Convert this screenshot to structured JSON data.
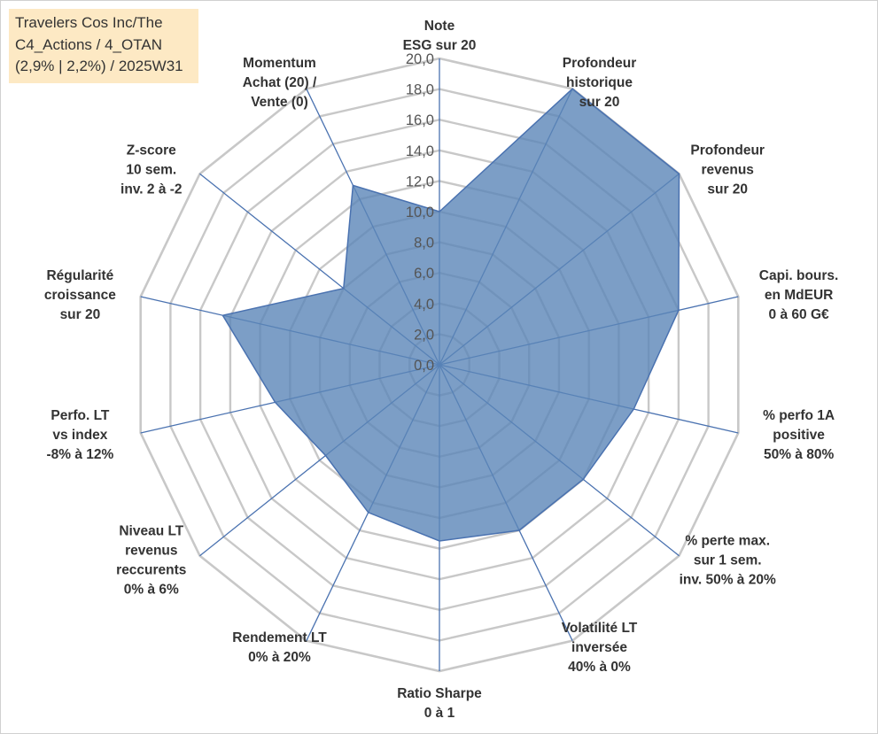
{
  "title_lines": [
    "Travelers Cos Inc/The",
    "C4_Actions / 4_OTAN",
    "(2,9% | 2,2%) / 2025W31"
  ],
  "colors": {
    "fill": "#5b86b8",
    "stroke": "#4a72b0",
    "grid": "#c8c8c8",
    "spoke": "#4a72b0"
  },
  "chart_data": {
    "type": "radar",
    "range": [
      0,
      20
    ],
    "tick_step": 2,
    "tick_labels": [
      "0,0",
      "2,0",
      "4,0",
      "6,0",
      "8,0",
      "10,0",
      "12,0",
      "14,0",
      "16,0",
      "18,0",
      "20,0"
    ],
    "axes": [
      [
        "Note",
        "ESG sur 20"
      ],
      [
        "Profondeur",
        "historique",
        "sur 20"
      ],
      [
        "Profondeur",
        "revenus",
        "sur 20"
      ],
      [
        "Capi. bours.",
        "en MdEUR",
        "0 à 60 G€"
      ],
      [
        "% perfo 1A",
        "positive",
        "50% à 80%"
      ],
      [
        "% perte max.",
        "sur 1 sem.",
        "inv. 50% à 20%"
      ],
      [
        "Volatilité LT",
        "inversée",
        "40% à 0%"
      ],
      [
        "Ratio Sharpe",
        "0 à 1"
      ],
      [
        "Rendement LT",
        "0% à 20%"
      ],
      [
        "Niveau LT",
        "revenus",
        "reccurents",
        "0% à 6%"
      ],
      [
        "Perfo. LT",
        "vs index",
        "-8% à 12%"
      ],
      [
        "Régularité",
        "croissance",
        "sur 20"
      ],
      [
        "Z-score",
        "10 sem.",
        "inv. 2 à -2"
      ],
      [
        "Momentum",
        "Achat (20) /",
        "Vente (0)"
      ]
    ],
    "values": [
      10.0,
      20.0,
      20.0,
      16.0,
      13.0,
      12.0,
      12.0,
      11.5,
      10.7,
      9.5,
      11.0,
      14.5,
      8.0,
      13.0
    ],
    "grid": true,
    "legend": "none"
  }
}
